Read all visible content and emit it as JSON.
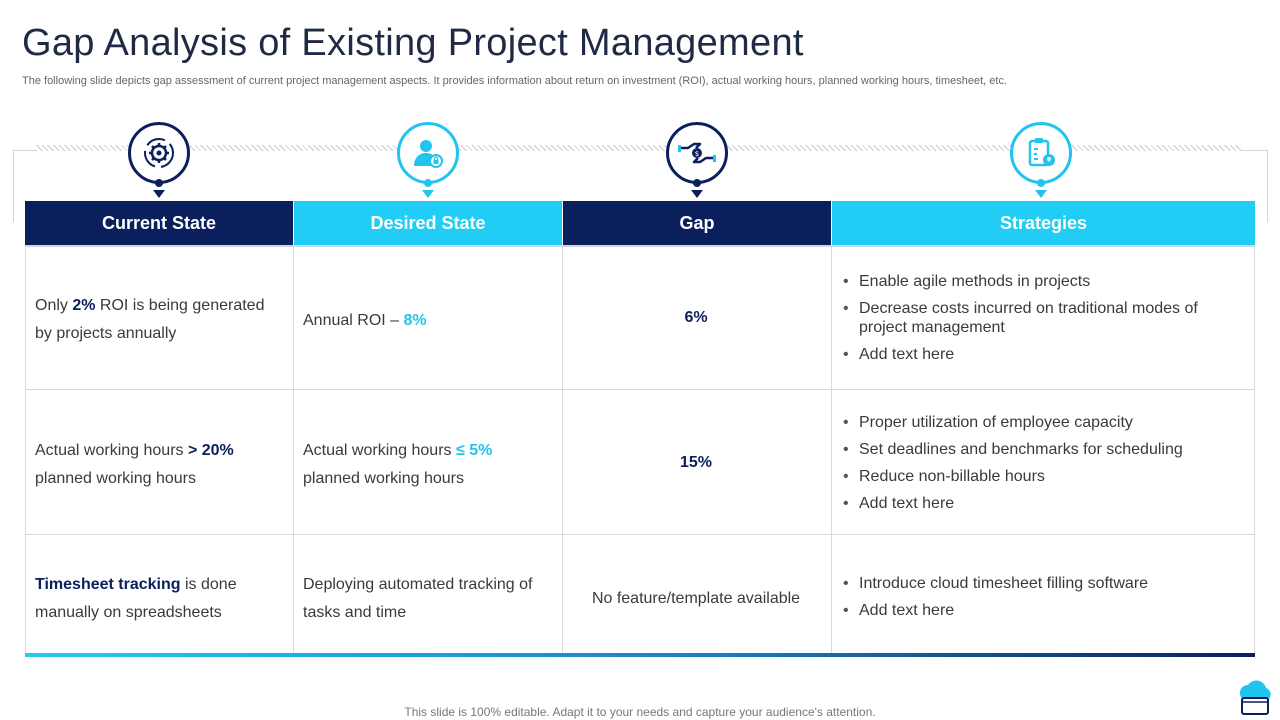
{
  "title": "Gap Analysis of Existing Project Management",
  "subtitle": "The following slide depicts gap assessment of current project management aspects. It provides information about return on investment (ROI), actual working hours, planned working hours, timesheet, etc.",
  "colors": {
    "dark": "#0b1f5c",
    "light": "#21cdf5"
  },
  "columns": [
    {
      "label": "Current State",
      "icon": "gear-refresh-icon",
      "theme": "dark"
    },
    {
      "label": "Desired State",
      "icon": "user-lock-icon",
      "theme": "light"
    },
    {
      "label": "Gap",
      "icon": "hand-coin-icon",
      "theme": "dark"
    },
    {
      "label": "Strategies",
      "icon": "clipboard-bulb-icon",
      "theme": "light"
    }
  ],
  "rows": [
    {
      "current": {
        "pre": "Only ",
        "hl": "2%",
        "post": " ROI is being generated by projects annually"
      },
      "desired": {
        "pre": "Annual ROI – ",
        "hl": "8%",
        "post": ""
      },
      "gap": "6%",
      "strategies": [
        "Enable agile methods in projects",
        "Decrease costs incurred on traditional modes of project management",
        "Add text here"
      ]
    },
    {
      "current": {
        "pre": "Actual working hours ",
        "hl": "> 20%",
        "post": " planned working hours"
      },
      "desired": {
        "pre": "Actual working hours ",
        "hl": "≤ 5%",
        "post": " planned working hours"
      },
      "gap": "15%",
      "strategies": [
        "Proper utilization of employee capacity",
        "Set deadlines and benchmarks for scheduling",
        "Reduce non-billable hours",
        "Add text here"
      ]
    },
    {
      "current": {
        "pre": "",
        "hl": "Timesheet tracking",
        "post": " is done manually on spreadsheets"
      },
      "desired": {
        "pre": "Deploying automated tracking of tasks and time",
        "hl": "",
        "post": ""
      },
      "gap": "No feature/template available",
      "strategies": [
        "Introduce cloud timesheet filling software",
        "Add text here"
      ]
    }
  ],
  "footer": "This slide is 100% editable. Adapt it to your needs and capture your audience's attention.",
  "logo_icon": "cloud-logo-icon"
}
